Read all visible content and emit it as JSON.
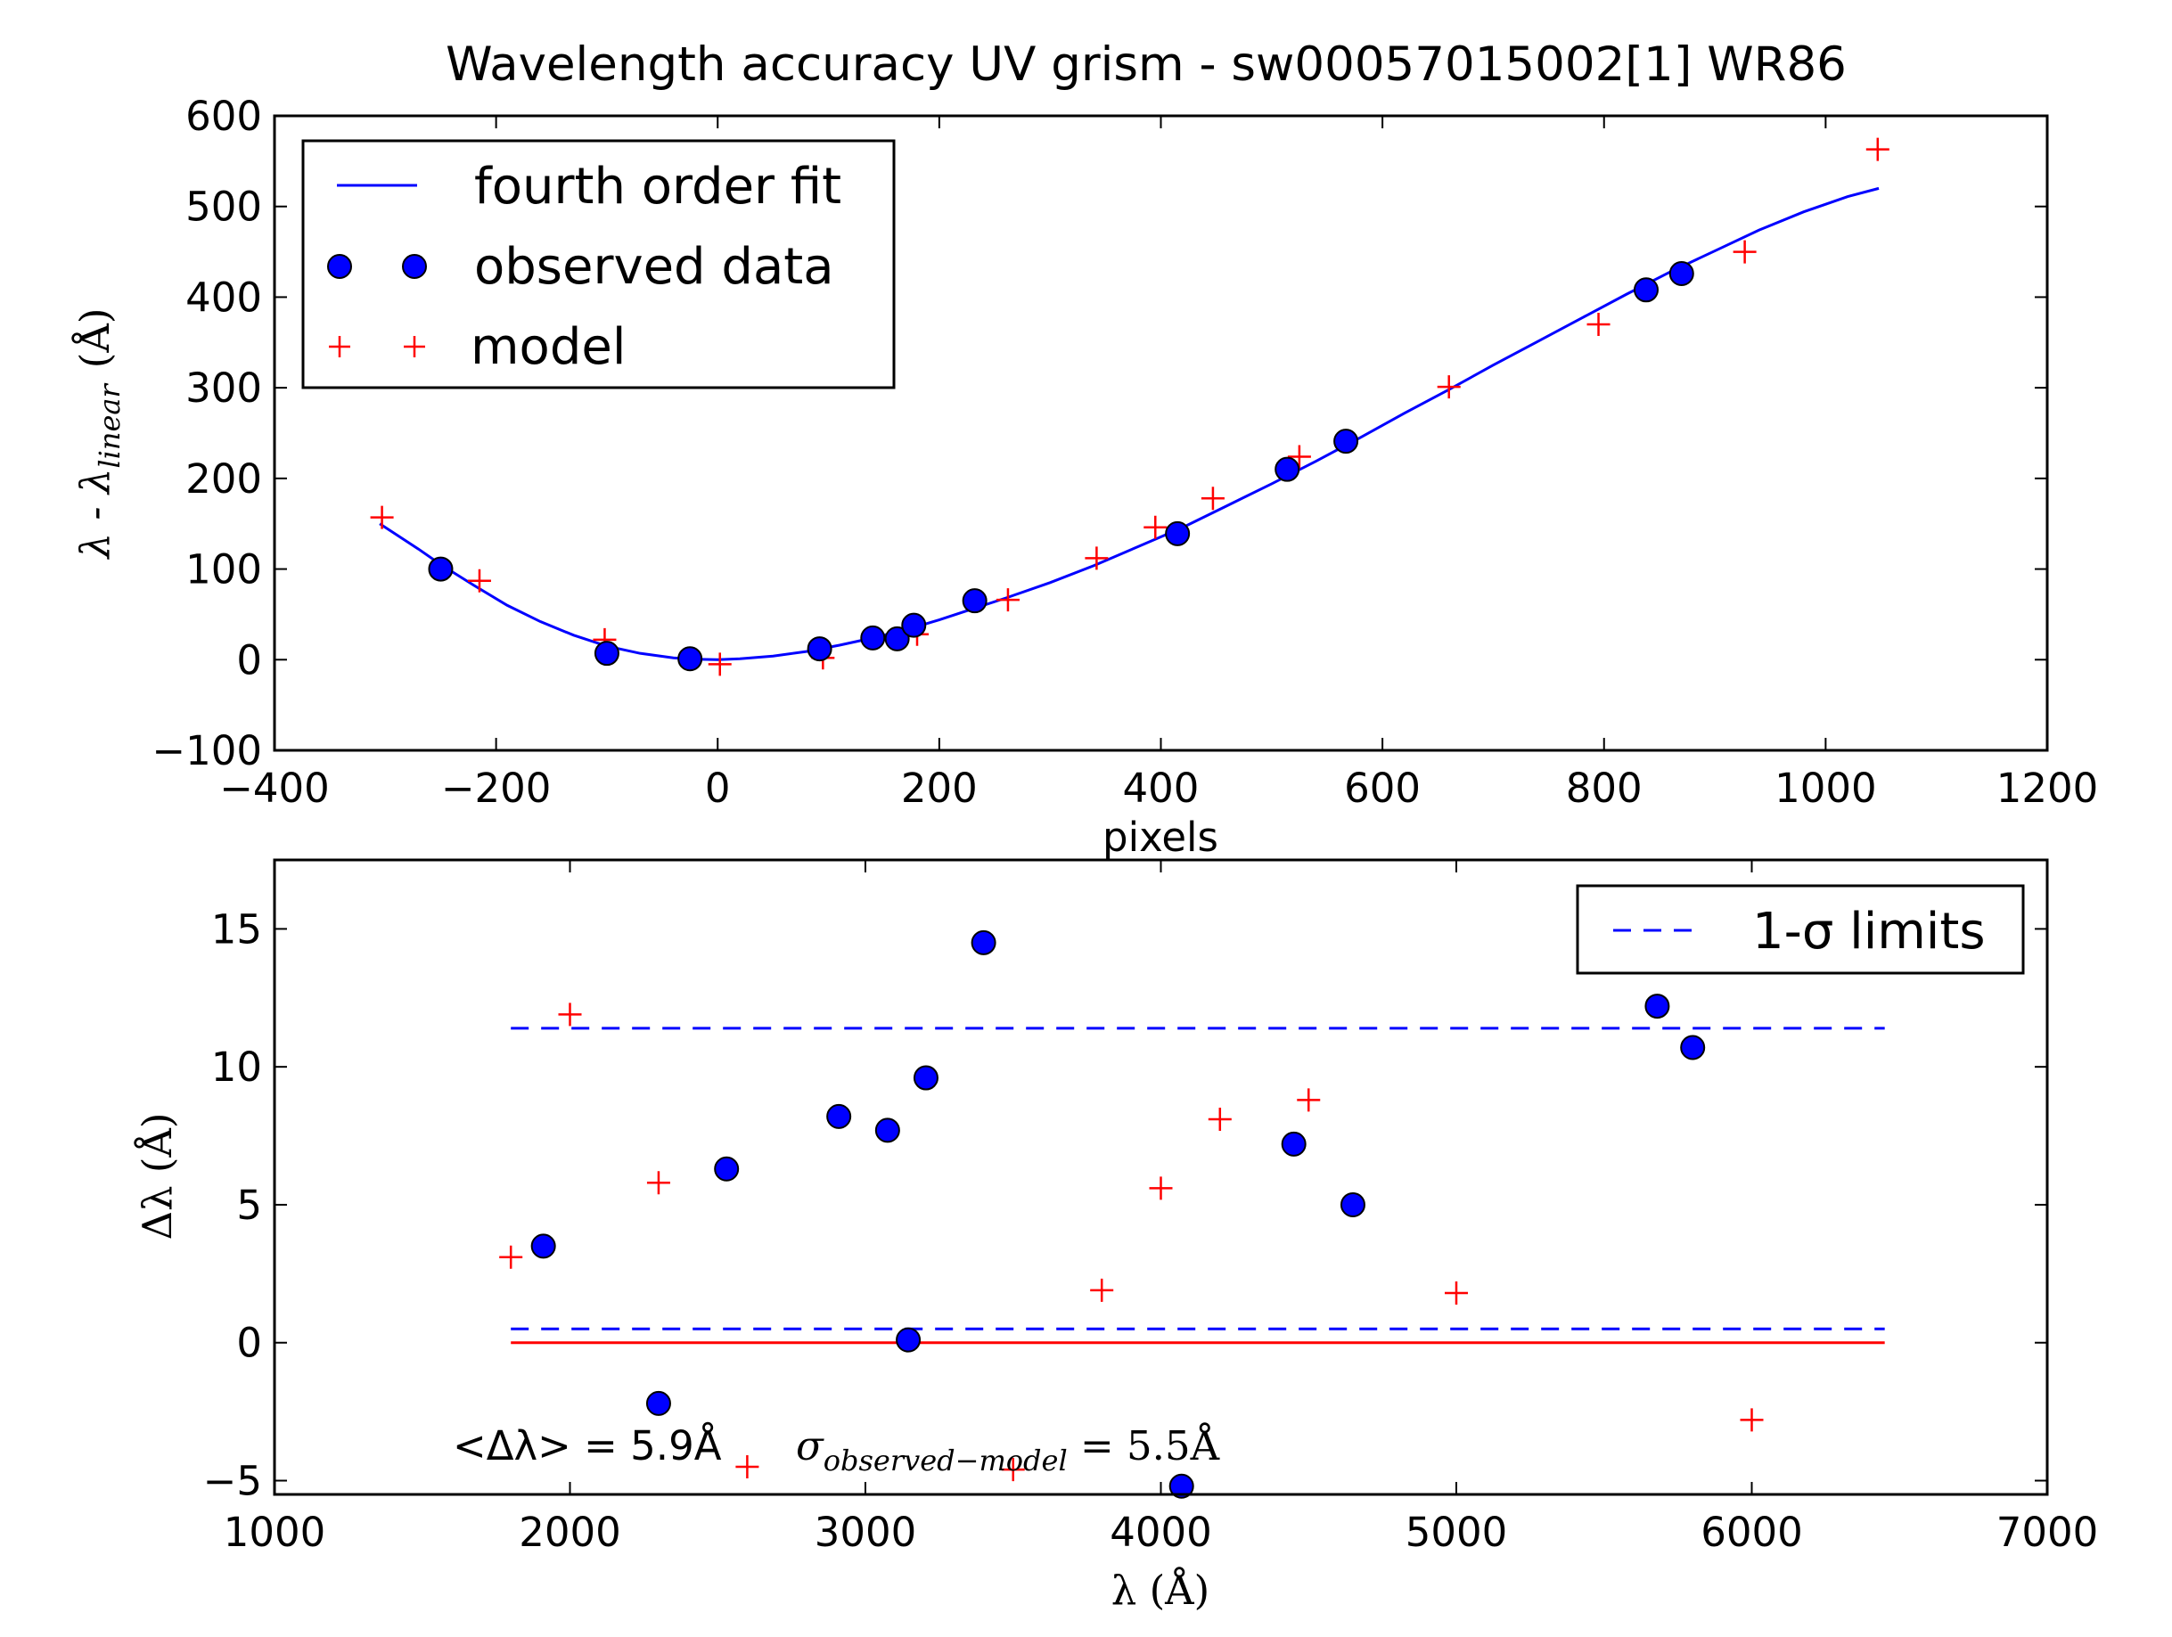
{
  "chart_data": [
    {
      "type": "scatter",
      "title": "Wavelength accuracy UV grism - sw00057015002[1] WR86",
      "xlabel": "pixels",
      "ylabel": "λ - λ",
      "ylabel_sub": "linear",
      "ylabel_unit": "(Å)",
      "xlim": [
        -400,
        1200
      ],
      "ylim": [
        -100,
        600
      ],
      "xticks": [
        -400,
        -200,
        0,
        200,
        400,
        600,
        800,
        1000,
        1200
      ],
      "xtick_labels": [
        "−400",
        "−200",
        "0",
        "200",
        "400",
        "600",
        "800",
        "1000",
        "1200"
      ],
      "yticks": [
        -100,
        0,
        100,
        200,
        300,
        400,
        500,
        600
      ],
      "ytick_labels": [
        "−100",
        "0",
        "100",
        "200",
        "300",
        "400",
        "500",
        "600"
      ],
      "legend": {
        "position": "top-left",
        "entries": [
          "fourth order fit",
          "observed data",
          "model"
        ]
      },
      "series": [
        {
          "name": "fourth order fit",
          "kind": "line",
          "color": "#0000ff",
          "x": [
            -305,
            -270,
            -250,
            -220,
            -190,
            -160,
            -130,
            -100,
            -70,
            -40,
            -20,
            0,
            20,
            50,
            80,
            110,
            140,
            170,
            200,
            230,
            260,
            300,
            340,
            380,
            420,
            460,
            500,
            540,
            580,
            620,
            660,
            700,
            740,
            780,
            820,
            860,
            900,
            940,
            980,
            1020,
            1048
          ],
          "y": [
            150,
            122,
            105,
            82,
            60,
            42,
            27,
            15,
            7,
            2,
            0.5,
            0,
            1,
            4,
            9,
            16,
            24,
            33,
            44,
            56,
            68,
            85,
            104,
            125,
            146,
            170,
            194,
            219,
            245,
            272,
            298,
            325,
            351,
            377,
            403,
            428,
            451,
            474,
            494,
            511,
            520
          ]
        },
        {
          "name": "observed data",
          "kind": "points",
          "color": "#0000ff",
          "x": [
            -250,
            -100,
            -25,
            92,
            140,
            162,
            177,
            232,
            415,
            514,
            567,
            838,
            870
          ],
          "y": [
            100,
            7,
            1,
            12,
            24,
            23,
            38,
            65,
            139,
            210,
            241,
            408,
            426
          ]
        },
        {
          "name": "model",
          "kind": "plus",
          "color": "#ff0000",
          "x": [
            -303,
            -215,
            -102,
            2,
            95,
            180,
            262,
            342,
            395,
            447,
            525,
            660,
            795,
            927,
            1047
          ],
          "y": [
            157,
            87,
            22,
            -5,
            2,
            28,
            66,
            112,
            146,
            178,
            224,
            301,
            370,
            450,
            563
          ]
        }
      ]
    },
    {
      "type": "scatter",
      "title": "",
      "xlabel": "λ (Å)",
      "ylabel": "Δλ (Å)",
      "xlim": [
        1000,
        7000
      ],
      "ylim": [
        -5.5,
        17.5
      ],
      "xticks": [
        1000,
        2000,
        3000,
        4000,
        5000,
        6000,
        7000
      ],
      "xtick_labels": [
        "1000",
        "2000",
        "3000",
        "4000",
        "5000",
        "6000",
        "7000"
      ],
      "yticks": [
        -5,
        0,
        5,
        10,
        15
      ],
      "ytick_labels": [
        "−5",
        "0",
        "5",
        "10",
        "15"
      ],
      "legend": {
        "position": "top-right",
        "entries": [
          "1-σ limits"
        ]
      },
      "annotations": {
        "mean_text": "<Δλ> = 5.9Å",
        "sigma_symbol": "σ",
        "sigma_sub": "observed−model",
        "sigma_value": " = 5.5Å"
      },
      "hlines": [
        {
          "name": "1-σ limits",
          "style": "dashed",
          "color": "#0000ff",
          "y": 11.4,
          "x": [
            1800,
            6450
          ]
        },
        {
          "name": "1-σ limits",
          "style": "dashed",
          "color": "#0000ff",
          "y": 0.5,
          "x": [
            1800,
            6450
          ]
        },
        {
          "name": "zero",
          "style": "solid",
          "color": "#ff0000",
          "y": 0,
          "x": [
            1800,
            6450
          ]
        }
      ],
      "series": [
        {
          "name": "observed data",
          "kind": "points",
          "color": "#0000ff",
          "x": [
            1910,
            2300,
            2530,
            2910,
            3075,
            3145,
            3205,
            3400,
            4070,
            4450,
            4650,
            5680,
            5800
          ],
          "y": [
            3.5,
            -2.2,
            6.3,
            8.2,
            7.7,
            0.1,
            9.6,
            14.5,
            -5.2,
            7.2,
            5.0,
            12.2,
            10.7
          ]
        },
        {
          "name": "model",
          "kind": "plus",
          "color": "#ff0000",
          "x": [
            1800,
            2000,
            2300,
            2600,
            3500,
            3800,
            4000,
            4200,
            4500,
            5000,
            6000
          ],
          "y": [
            3.1,
            11.9,
            5.8,
            -4.5,
            -4.6,
            1.9,
            5.6,
            8.1,
            8.8,
            1.8,
            -2.8
          ]
        }
      ]
    }
  ]
}
